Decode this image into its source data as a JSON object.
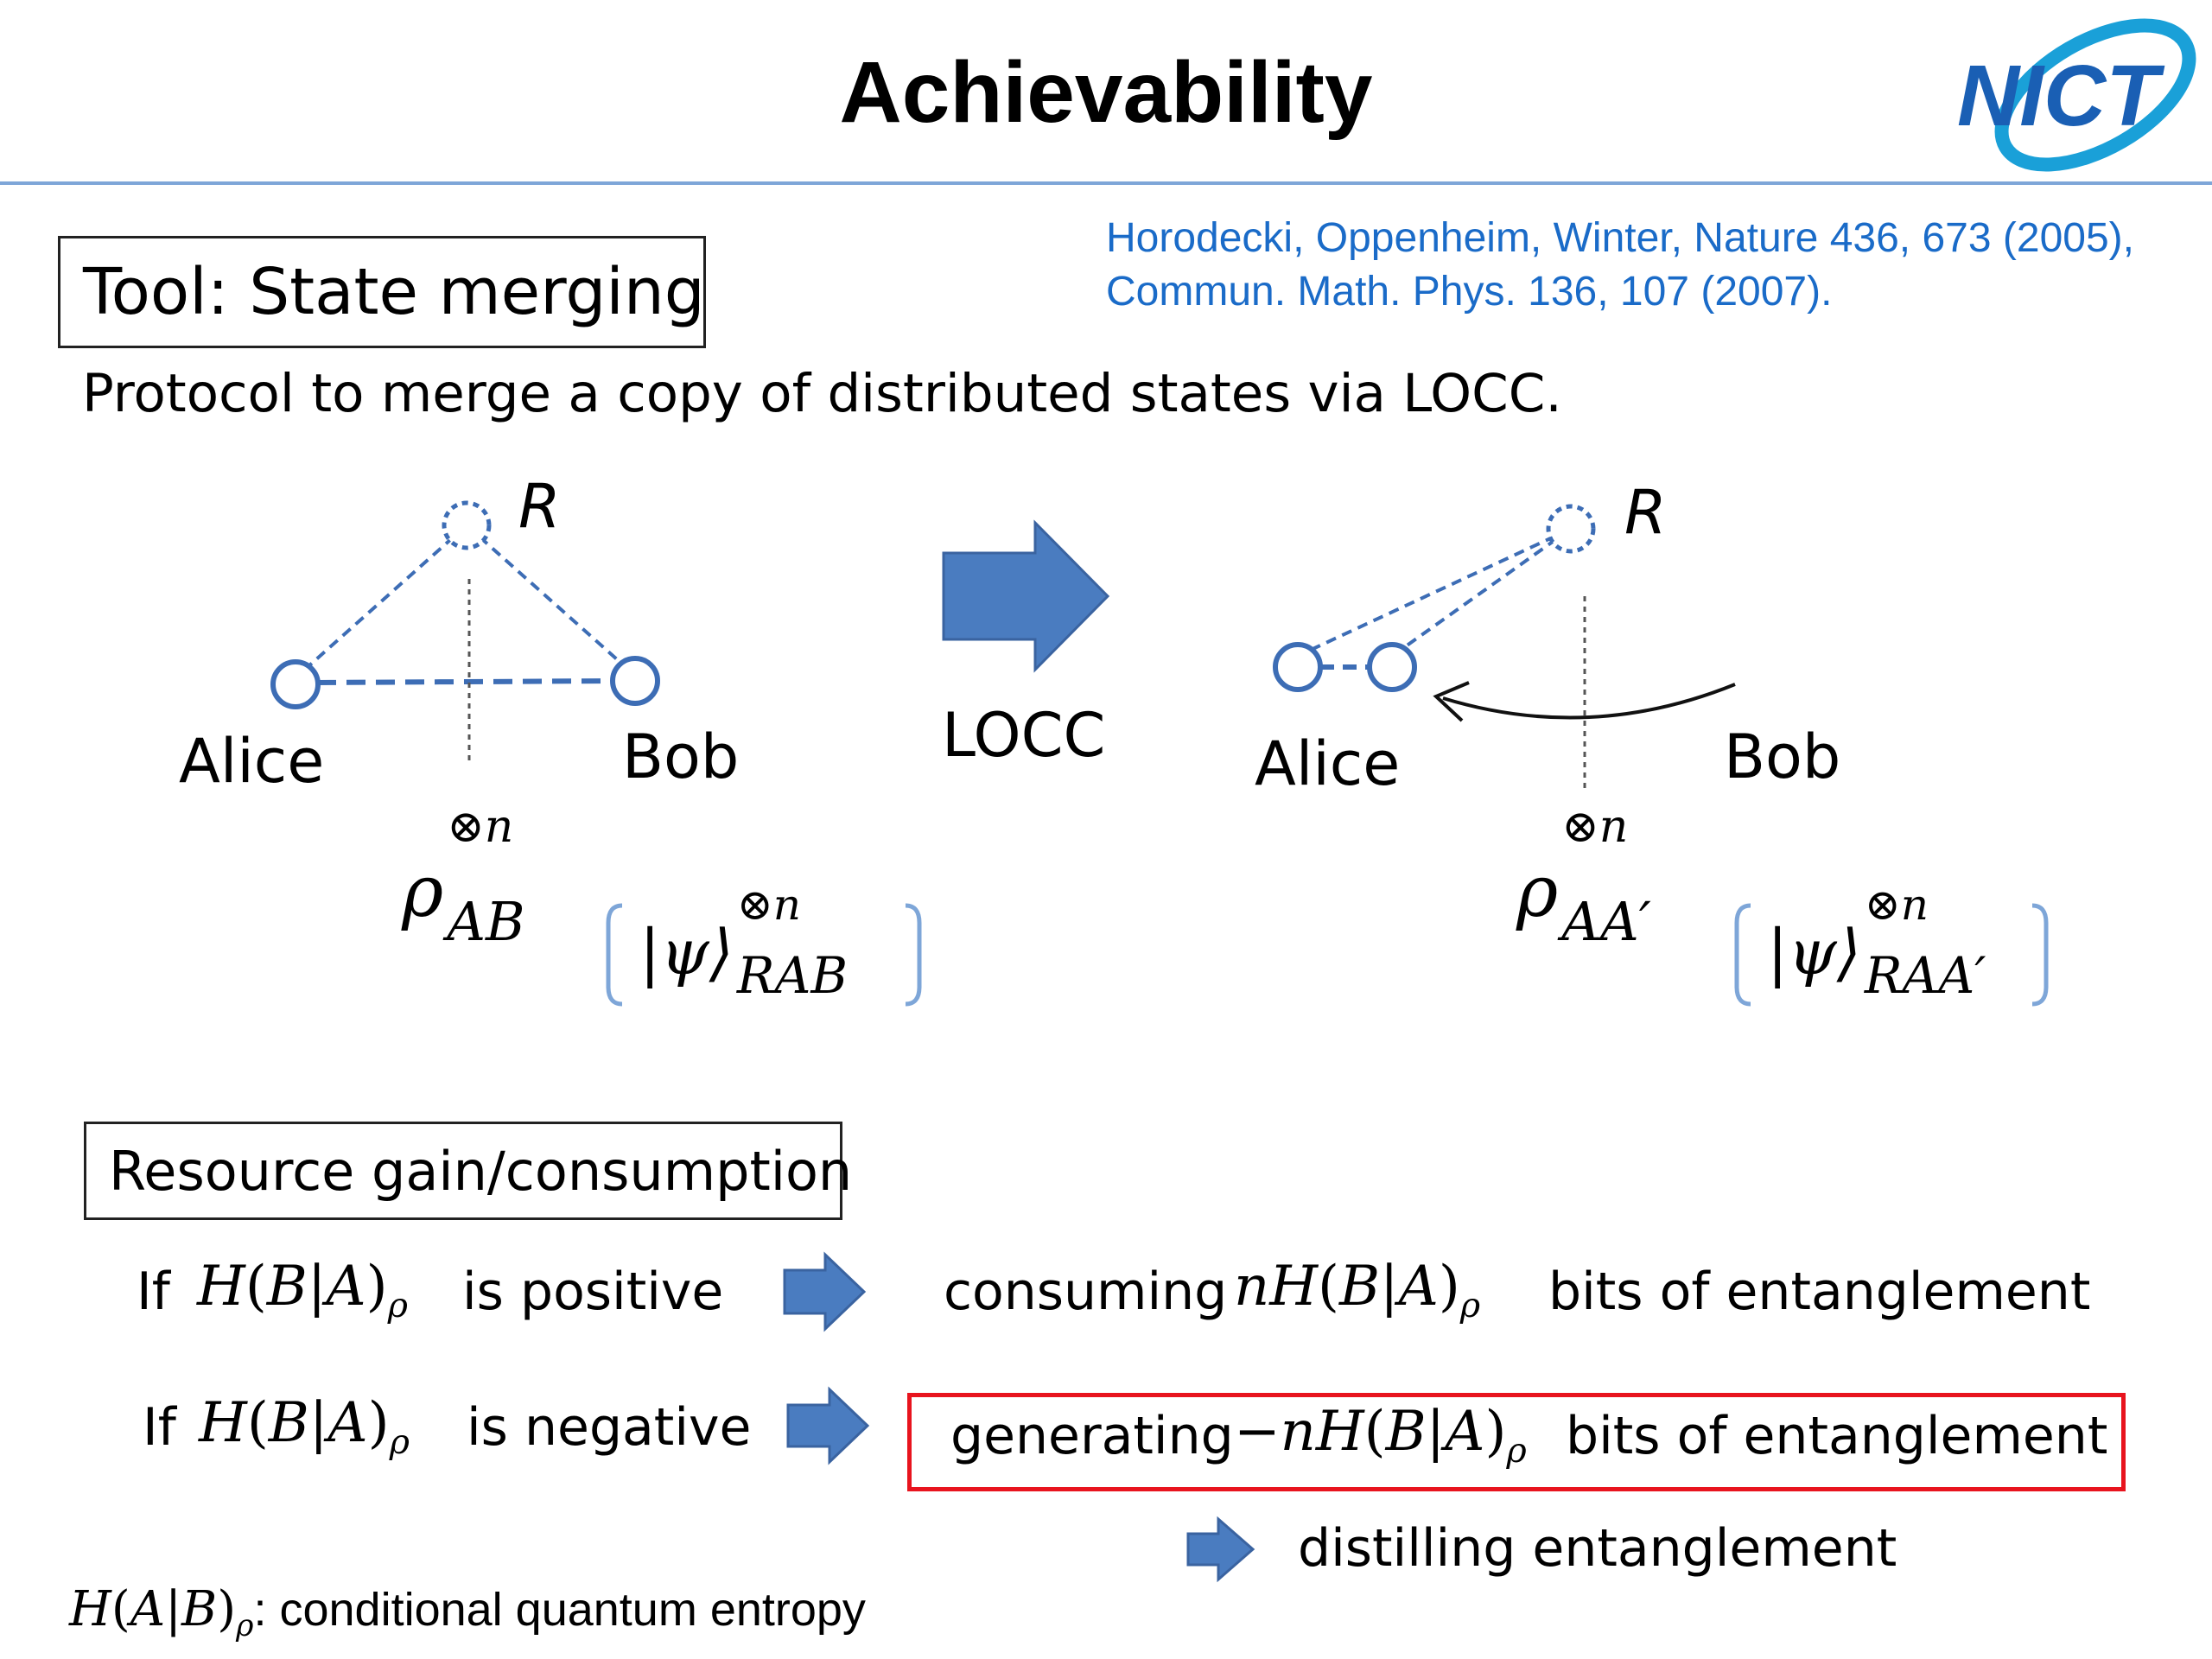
{
  "header": {
    "title": "Achievability",
    "logo_text": "NICT"
  },
  "reference": {
    "line1": "Horodecki, Oppenheim, Winter, Nature 436, 673 (2005),",
    "line2": "Commun. Math. Phys. 136, 107 (2007)."
  },
  "tool": {
    "box_label": "Tool: State merging",
    "description": "Protocol to merge a copy of distributed states via LOCC."
  },
  "diagram": {
    "left": {
      "R": "R",
      "alice": "Alice",
      "bob": "Bob",
      "rho_sub": "AB",
      "rho_sup": "⊗n",
      "psi_sub": "RAB",
      "psi_sup": "⊗n"
    },
    "arrow_label": "LOCC",
    "right": {
      "R": "R",
      "alice": "Alice",
      "bob": "Bob",
      "rho_sub": "AA′",
      "rho_sup": "⊗n",
      "psi_sub": "RAA′",
      "psi_sup": "⊗n"
    },
    "colors": {
      "node_blue": "#3d6db5",
      "arrow_blue": "#4a7cc0",
      "bracket_blue": "#7ea6d8"
    }
  },
  "resource": {
    "box_label": "Resource gain/consumption",
    "rows": [
      {
        "if": "If",
        "cond": "is positive",
        "result_pre": "consuming",
        "result_post": "bits of entanglement"
      },
      {
        "if": "If",
        "cond": "is negative",
        "result_pre": "generating",
        "result_post": "bits of entanglement"
      }
    ],
    "distill": "distilling entanglement",
    "highlight_color": "#e8141e"
  },
  "footnote": {
    "text": ": conditional quantum entropy"
  }
}
